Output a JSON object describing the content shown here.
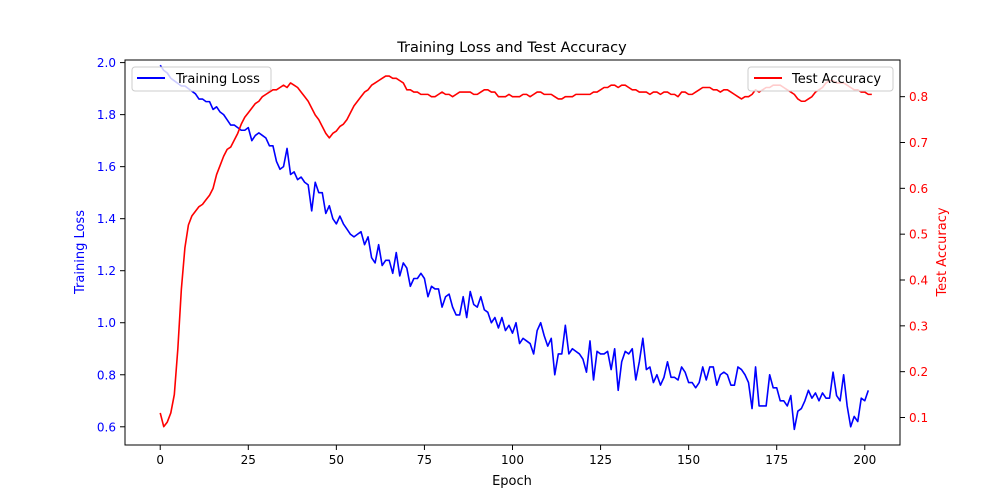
{
  "chart_data": {
    "type": "line",
    "title": "Training Loss and Test Accuracy",
    "xlabel": "Epoch",
    "xlim": [
      -10,
      210
    ],
    "x_ticks": [
      0,
      25,
      50,
      75,
      100,
      125,
      150,
      175,
      200
    ],
    "left_axis": {
      "label": "Training Loss",
      "color": "#0000ff",
      "lim": [
        0.53,
        2.01
      ],
      "ticks": [
        0.6,
        0.8,
        1.0,
        1.2,
        1.4,
        1.6,
        1.8,
        2.0
      ],
      "tick_labels": [
        "0.6",
        "0.8",
        "1.0",
        "1.2",
        "1.4",
        "1.6",
        "1.8",
        "2.0"
      ]
    },
    "right_axis": {
      "label": "Test Accuracy",
      "color": "#ff0000",
      "lim": [
        0.04,
        0.88
      ],
      "ticks": [
        0.1,
        0.2,
        0.3,
        0.4,
        0.5,
        0.6,
        0.7,
        0.8
      ],
      "tick_labels": [
        "0.1",
        "0.2",
        "0.3",
        "0.4",
        "0.5",
        "0.6",
        "0.7",
        "0.8"
      ]
    },
    "grid": false,
    "series": [
      {
        "name": "Training Loss",
        "axis": "left",
        "color": "#0000ff",
        "x_start": 0,
        "x_step": 1,
        "values": [
          1.99,
          1.97,
          1.96,
          1.94,
          1.93,
          1.92,
          1.91,
          1.91,
          1.9,
          1.89,
          1.88,
          1.86,
          1.86,
          1.85,
          1.85,
          1.82,
          1.83,
          1.81,
          1.8,
          1.78,
          1.76,
          1.76,
          1.75,
          1.74,
          1.74,
          1.75,
          1.7,
          1.72,
          1.73,
          1.72,
          1.71,
          1.68,
          1.68,
          1.62,
          1.59,
          1.6,
          1.67,
          1.57,
          1.58,
          1.55,
          1.56,
          1.54,
          1.53,
          1.43,
          1.54,
          1.5,
          1.5,
          1.42,
          1.45,
          1.4,
          1.38,
          1.41,
          1.38,
          1.36,
          1.34,
          1.33,
          1.34,
          1.35,
          1.3,
          1.33,
          1.25,
          1.23,
          1.3,
          1.22,
          1.24,
          1.24,
          1.19,
          1.27,
          1.18,
          1.23,
          1.21,
          1.14,
          1.17,
          1.17,
          1.19,
          1.17,
          1.1,
          1.14,
          1.13,
          1.13,
          1.06,
          1.1,
          1.11,
          1.06,
          1.03,
          1.03,
          1.1,
          1.02,
          1.12,
          1.07,
          1.06,
          1.1,
          1.05,
          1.04,
          1.0,
          1.02,
          0.98,
          1.02,
          0.97,
          0.99,
          0.96,
          1.0,
          0.92,
          0.94,
          0.93,
          0.92,
          0.88,
          0.97,
          1.0,
          0.95,
          0.91,
          0.94,
          0.8,
          0.88,
          0.88,
          0.99,
          0.88,
          0.9,
          0.89,
          0.88,
          0.86,
          0.81,
          0.93,
          0.78,
          0.89,
          0.88,
          0.88,
          0.89,
          0.82,
          0.9,
          0.74,
          0.85,
          0.89,
          0.88,
          0.9,
          0.78,
          0.85,
          0.94,
          0.82,
          0.83,
          0.77,
          0.8,
          0.76,
          0.79,
          0.85,
          0.79,
          0.79,
          0.78,
          0.83,
          0.81,
          0.77,
          0.77,
          0.75,
          0.77,
          0.83,
          0.78,
          0.83,
          0.83,
          0.76,
          0.8,
          0.81,
          0.8,
          0.76,
          0.76,
          0.83,
          0.82,
          0.8,
          0.77,
          0.67,
          0.83,
          0.68,
          0.68,
          0.68,
          0.8,
          0.75,
          0.75,
          0.7,
          0.7,
          0.68,
          0.72,
          0.59,
          0.66,
          0.67,
          0.7,
          0.74,
          0.71,
          0.73,
          0.7,
          0.73,
          0.71,
          0.71,
          0.81,
          0.72,
          0.7,
          0.8,
          0.68,
          0.6,
          0.64,
          0.62,
          0.71,
          0.7,
          0.74
        ]
      },
      {
        "name": "Test Accuracy",
        "axis": "right",
        "color": "#ff0000",
        "x_start": 0,
        "x_step": 1,
        "values": [
          0.11,
          0.08,
          0.09,
          0.11,
          0.15,
          0.25,
          0.38,
          0.47,
          0.52,
          0.54,
          0.55,
          0.56,
          0.565,
          0.575,
          0.585,
          0.6,
          0.63,
          0.65,
          0.67,
          0.685,
          0.69,
          0.705,
          0.72,
          0.74,
          0.755,
          0.765,
          0.775,
          0.785,
          0.79,
          0.8,
          0.805,
          0.81,
          0.815,
          0.815,
          0.82,
          0.825,
          0.82,
          0.83,
          0.825,
          0.82,
          0.81,
          0.8,
          0.79,
          0.775,
          0.76,
          0.75,
          0.735,
          0.72,
          0.71,
          0.72,
          0.725,
          0.735,
          0.74,
          0.75,
          0.765,
          0.78,
          0.79,
          0.8,
          0.81,
          0.815,
          0.825,
          0.83,
          0.835,
          0.84,
          0.845,
          0.845,
          0.84,
          0.84,
          0.835,
          0.83,
          0.815,
          0.815,
          0.81,
          0.81,
          0.805,
          0.805,
          0.805,
          0.8,
          0.8,
          0.805,
          0.81,
          0.805,
          0.805,
          0.8,
          0.805,
          0.81,
          0.81,
          0.81,
          0.81,
          0.805,
          0.805,
          0.81,
          0.815,
          0.815,
          0.81,
          0.81,
          0.8,
          0.8,
          0.8,
          0.805,
          0.8,
          0.8,
          0.8,
          0.805,
          0.805,
          0.8,
          0.805,
          0.81,
          0.81,
          0.805,
          0.805,
          0.805,
          0.8,
          0.795,
          0.795,
          0.8,
          0.8,
          0.8,
          0.805,
          0.805,
          0.805,
          0.805,
          0.805,
          0.81,
          0.81,
          0.815,
          0.82,
          0.82,
          0.825,
          0.825,
          0.82,
          0.825,
          0.825,
          0.82,
          0.815,
          0.815,
          0.81,
          0.81,
          0.81,
          0.805,
          0.81,
          0.81,
          0.805,
          0.81,
          0.81,
          0.805,
          0.805,
          0.8,
          0.81,
          0.81,
          0.805,
          0.805,
          0.81,
          0.815,
          0.82,
          0.82,
          0.82,
          0.815,
          0.815,
          0.81,
          0.815,
          0.815,
          0.81,
          0.805,
          0.8,
          0.795,
          0.8,
          0.8,
          0.805,
          0.815,
          0.81,
          0.815,
          0.82,
          0.82,
          0.825,
          0.825,
          0.825,
          0.82,
          0.815,
          0.81,
          0.805,
          0.795,
          0.79,
          0.79,
          0.795,
          0.8,
          0.81,
          0.815,
          0.82,
          0.83,
          0.835,
          0.835,
          0.83,
          0.83,
          0.83,
          0.825,
          0.82,
          0.815,
          0.815,
          0.81,
          0.81,
          0.805,
          0.805
        ]
      }
    ],
    "legends": [
      {
        "label": "Training Loss",
        "color": "#0000ff",
        "placement": "upper-left"
      },
      {
        "label": "Test Accuracy",
        "color": "#ff0000",
        "placement": "upper-right"
      }
    ]
  }
}
